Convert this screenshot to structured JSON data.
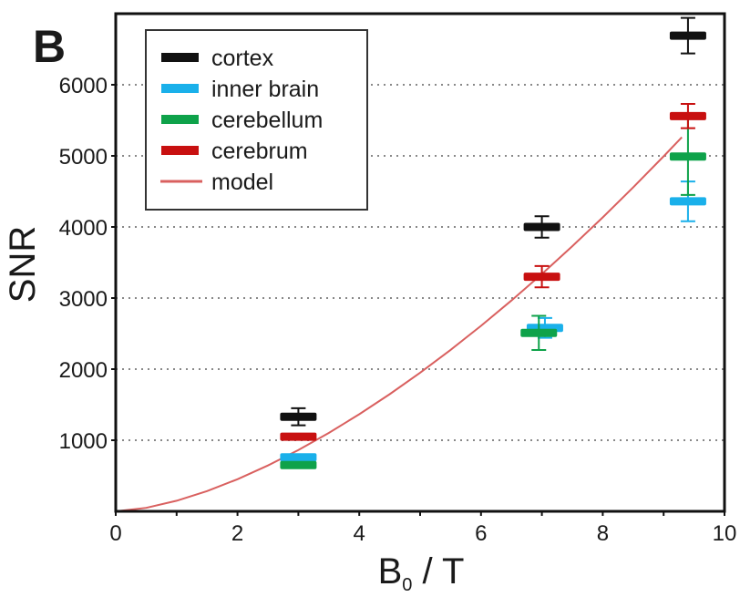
{
  "chart_data": {
    "type": "scatter",
    "panel_label": "B",
    "xlabel_main": "B",
    "xlabel_sub": "0",
    "xlabel_rest": " / T",
    "ylabel": "SNR",
    "xlim": [
      0,
      10
    ],
    "ylim": [
      0,
      7000
    ],
    "x_ticks": [
      0,
      2,
      4,
      6,
      8,
      10
    ],
    "x_tick_labels": [
      "0",
      "2",
      "4",
      "6",
      "8",
      "10"
    ],
    "y_ticks": [
      1000,
      2000,
      3000,
      4000,
      5000,
      6000
    ],
    "y_tick_labels": [
      "1000",
      "2000",
      "3000",
      "4000",
      "5000",
      "6000"
    ],
    "grid": "horizontal-dotted",
    "legend_position": "top-left",
    "series": [
      {
        "name": "cortex",
        "color": "#111111",
        "points": [
          {
            "x": 3.0,
            "y": 1330,
            "err": 120
          },
          {
            "x": 7.0,
            "y": 4000,
            "err": 150
          },
          {
            "x": 9.4,
            "y": 6690,
            "err": 250
          }
        ]
      },
      {
        "name": "inner brain",
        "color": "#1ab0ea",
        "points": [
          {
            "x": 3.0,
            "y": 760,
            "err": 0
          },
          {
            "x": 7.05,
            "y": 2580,
            "err": 140
          },
          {
            "x": 9.4,
            "y": 4360,
            "err": 280
          }
        ]
      },
      {
        "name": "cerebellum",
        "color": "#0ea24a",
        "points": [
          {
            "x": 3.0,
            "y": 650,
            "err": 0
          },
          {
            "x": 6.95,
            "y": 2510,
            "err": 240
          },
          {
            "x": 9.4,
            "y": 4990,
            "err": 540
          }
        ]
      },
      {
        "name": "cerebrum",
        "color": "#c81010",
        "points": [
          {
            "x": 3.0,
            "y": 1050,
            "err": 40
          },
          {
            "x": 7.0,
            "y": 3300,
            "err": 150
          },
          {
            "x": 9.4,
            "y": 5560,
            "err": 170
          }
        ]
      }
    ],
    "model": {
      "name": "model",
      "color": "#d9605f",
      "x": [
        0,
        0.5,
        1,
        1.5,
        2,
        2.5,
        3,
        3.5,
        4,
        4.5,
        5,
        5.5,
        6,
        6.5,
        7,
        7.5,
        8,
        8.5,
        9,
        9.3
      ],
      "y": [
        0,
        49,
        149,
        285,
        451,
        645,
        862,
        1103,
        1365,
        1647,
        1950,
        2270,
        2609,
        2966,
        3339,
        3729,
        4135,
        4557,
        4993,
        5262
      ]
    }
  }
}
